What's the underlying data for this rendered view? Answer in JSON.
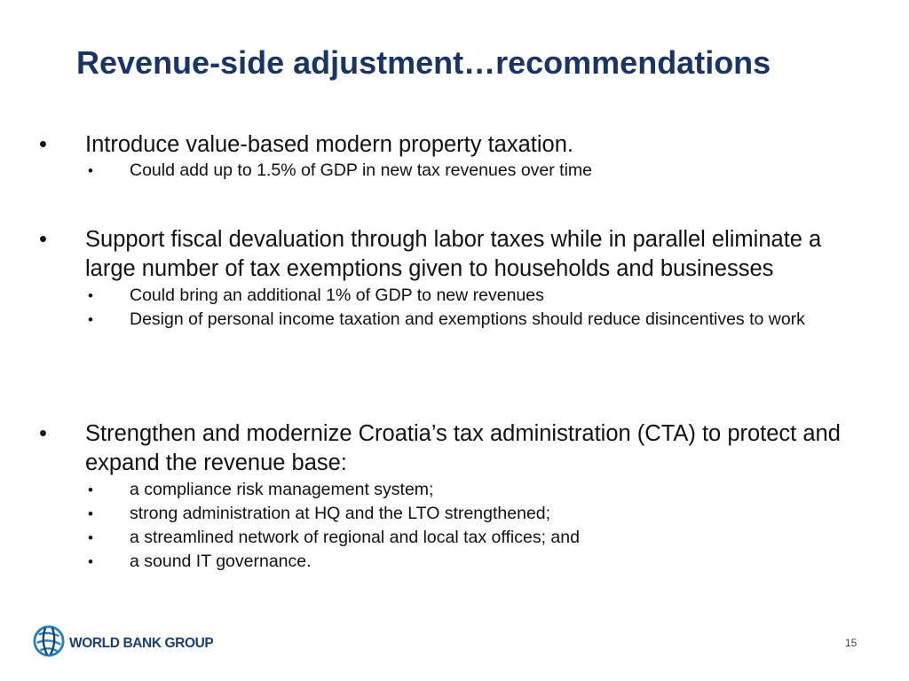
{
  "slide": {
    "title": "Revenue-side adjustment…recommendations",
    "page_number": "15",
    "brand_color": "#1b3563"
  },
  "bullets": [
    {
      "text": "Introduce value-based modern property taxation.",
      "sub": [
        "Could add up to 1.5% of GDP in new tax revenues over time"
      ]
    },
    {
      "text": "Support fiscal devaluation through labor taxes while in parallel eliminate a large number of tax exemptions given to households and businesses",
      "sub": [
        "Could bring an additional 1% of GDP to new revenues",
        "Design of personal income taxation and exemptions should reduce disincentives to work"
      ]
    },
    {
      "text": "Strengthen and modernize Croatia’s tax administration (CTA) to protect and expand the revenue base:",
      "sub": [
        "a compliance risk management system;",
        "strong administration at HQ and the LTO strengthened;",
        "a streamlined network of regional and local tax offices; and",
        "a sound IT governance."
      ]
    }
  ],
  "footer": {
    "logo_text": "WORLD BANK GROUP",
    "logo_icon": "globe-logo-icon"
  }
}
